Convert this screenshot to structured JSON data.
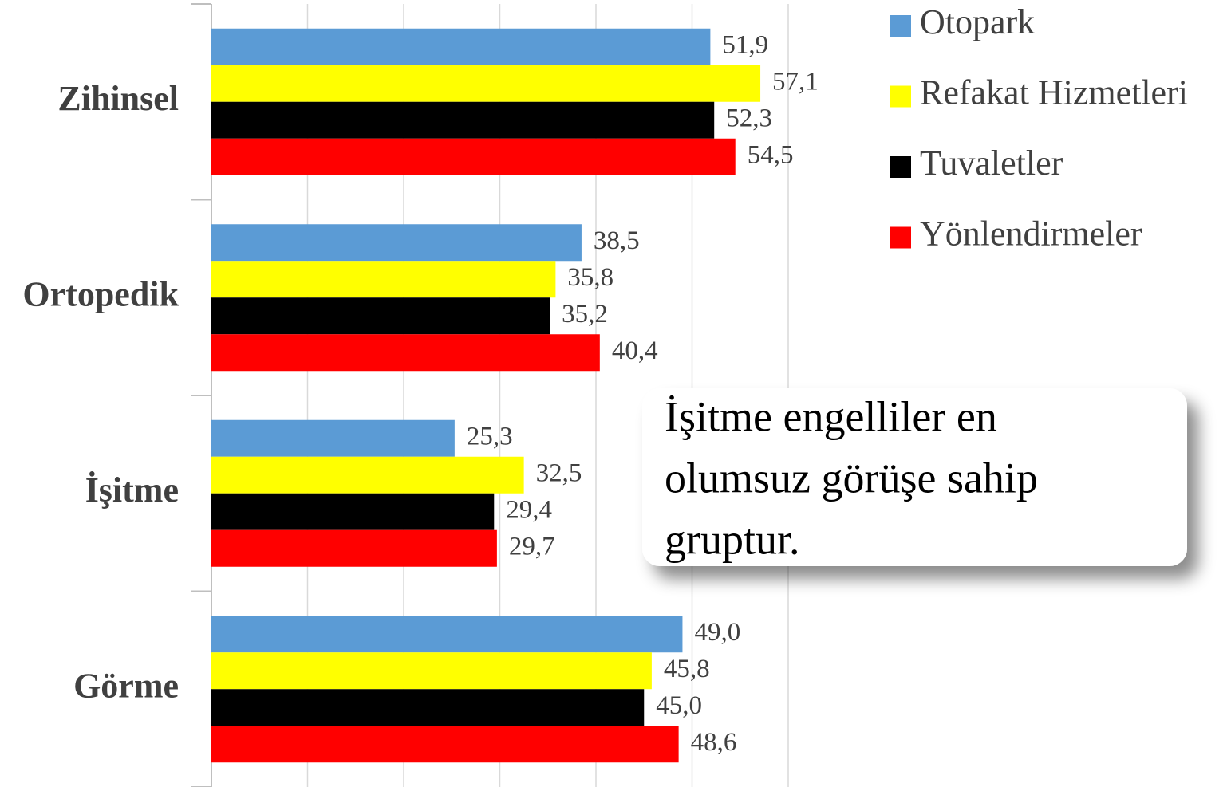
{
  "chart_data": {
    "type": "barh",
    "categories": [
      "Zihinsel",
      "Ortopedik",
      "İşitme",
      "Görme"
    ],
    "series": [
      {
        "name": "Otopark",
        "color": "#5b9bd5",
        "values": [
          51.9,
          38.5,
          25.3,
          49.0
        ],
        "value_labels": [
          "51,9",
          "38,5",
          "25,3",
          "49,0"
        ]
      },
      {
        "name": "Refakat Hizmetleri",
        "color": "#ffff00",
        "values": [
          57.1,
          35.8,
          32.5,
          45.8
        ],
        "value_labels": [
          "57,1",
          "35,8",
          "32,5",
          "45,8"
        ]
      },
      {
        "name": "Tuvaletler",
        "color": "#000000",
        "values": [
          52.3,
          35.2,
          29.4,
          45.0
        ],
        "value_labels": [
          "52,3",
          "35,2",
          "29,4",
          "45,0"
        ]
      },
      {
        "name": "Yönlendirmeler",
        "color": "#ff0000",
        "values": [
          54.5,
          40.4,
          29.7,
          48.6
        ],
        "value_labels": [
          "54,5",
          "40,4",
          "29,7",
          "48,6"
        ]
      }
    ],
    "xlim": [
      0,
      60
    ],
    "xticks": [
      0,
      10,
      20,
      30,
      40,
      50,
      60
    ],
    "grid": true,
    "legend": "right",
    "annotation": [
      "İşitme engelliler en",
      "olumsuz görüşe sahip",
      "gruptur."
    ]
  }
}
